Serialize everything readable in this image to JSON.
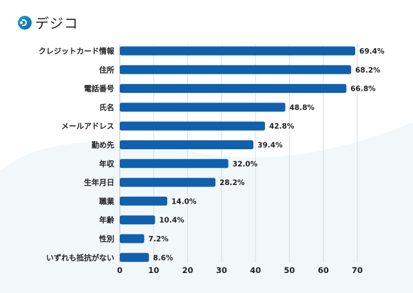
{
  "logo": {
    "text": "デジコ",
    "icon": "digico-d-logo-icon"
  },
  "colors": {
    "bar": "#1060AE",
    "grid": "#d9dde3",
    "wave": "#f2f7fa"
  },
  "chart_data": {
    "type": "bar",
    "orientation": "horizontal",
    "title": "",
    "xlabel": "",
    "ylabel": "",
    "categories": [
      "クレジットカード情報",
      "住所",
      "電話番号",
      "氏名",
      "メールアドレス",
      "勤め先",
      "年収",
      "生年月日",
      "職業",
      "年齢",
      "性別",
      "いずれも抵抗がない"
    ],
    "values": [
      69.4,
      68.2,
      66.8,
      48.8,
      42.8,
      39.4,
      32.0,
      28.2,
      14.0,
      10.4,
      7.2,
      8.6
    ],
    "value_labels": [
      "69.4%",
      "68.2%",
      "66.8%",
      "48.8%",
      "42.8%",
      "39.4%",
      "32.0%",
      "28.2%",
      "14.0%",
      "10.4%",
      "7.2%",
      "8.6%"
    ],
    "xlim": [
      0,
      70
    ],
    "xticks": [
      0,
      10,
      20,
      30,
      40,
      50,
      60,
      70
    ],
    "xtick_labels": [
      "0",
      "10",
      "20",
      "30",
      "40",
      "50",
      "60",
      "70"
    ],
    "grid": true,
    "legend": "none"
  }
}
